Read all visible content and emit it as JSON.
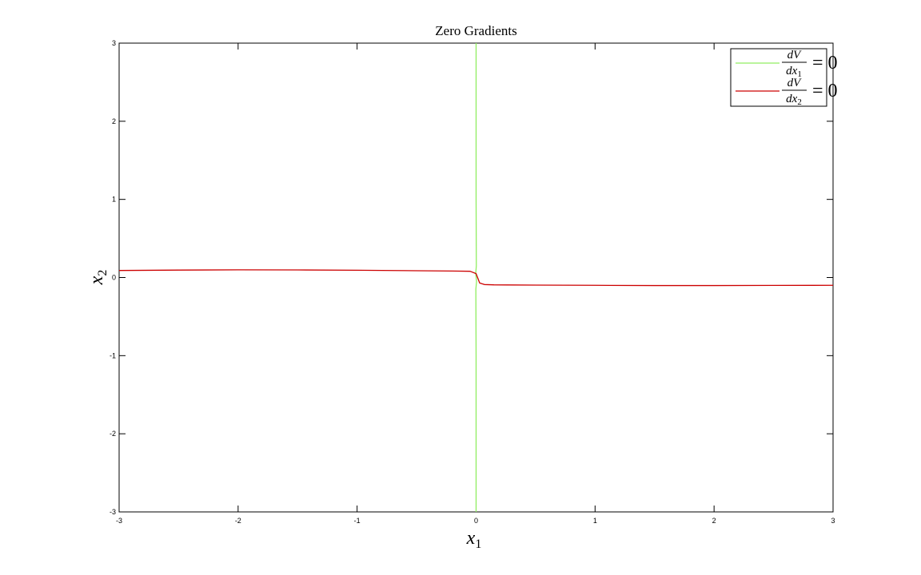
{
  "chart_data": {
    "type": "line",
    "title": "Zero Gradients",
    "xlabel": "x",
    "xlabel_sub": "1",
    "ylabel": "x",
    "ylabel_sub": "2",
    "xlim": [
      -3,
      3
    ],
    "ylim": [
      -3,
      3
    ],
    "x_ticks": [
      -3,
      -2,
      -1,
      0,
      1,
      2,
      3
    ],
    "y_ticks": [
      -3,
      -2,
      -1,
      0,
      1,
      2,
      3
    ],
    "grid": false,
    "legend_position": "top-right",
    "series": [
      {
        "name_num": "dV",
        "name_den": "dx",
        "name_den_sub": "1",
        "name_eq": "= 0",
        "color": "#90ee60",
        "x": [
          0.0,
          0.0,
          -0.002,
          0.004,
          -0.003,
          0.002,
          0.0,
          0.0
        ],
        "y": [
          -3.0,
          -1.0,
          -0.15,
          -0.05,
          0.05,
          0.15,
          1.0,
          3.0
        ]
      },
      {
        "name_num": "dV",
        "name_den": "dx",
        "name_den_sub": "2",
        "name_eq": "= 0",
        "color": "#cc0000",
        "x": [
          -3.0,
          -2.5,
          -2.0,
          -1.5,
          -1.0,
          -0.5,
          -0.2,
          -0.05,
          0.0,
          0.03,
          0.07,
          0.15,
          0.5,
          1.0,
          1.5,
          2.0,
          2.5,
          3.0
        ],
        "y": [
          0.09,
          0.095,
          0.098,
          0.097,
          0.093,
          0.087,
          0.083,
          0.08,
          0.05,
          -0.07,
          -0.09,
          -0.094,
          -0.097,
          -0.1,
          -0.103,
          -0.103,
          -0.101,
          -0.1
        ]
      }
    ]
  }
}
